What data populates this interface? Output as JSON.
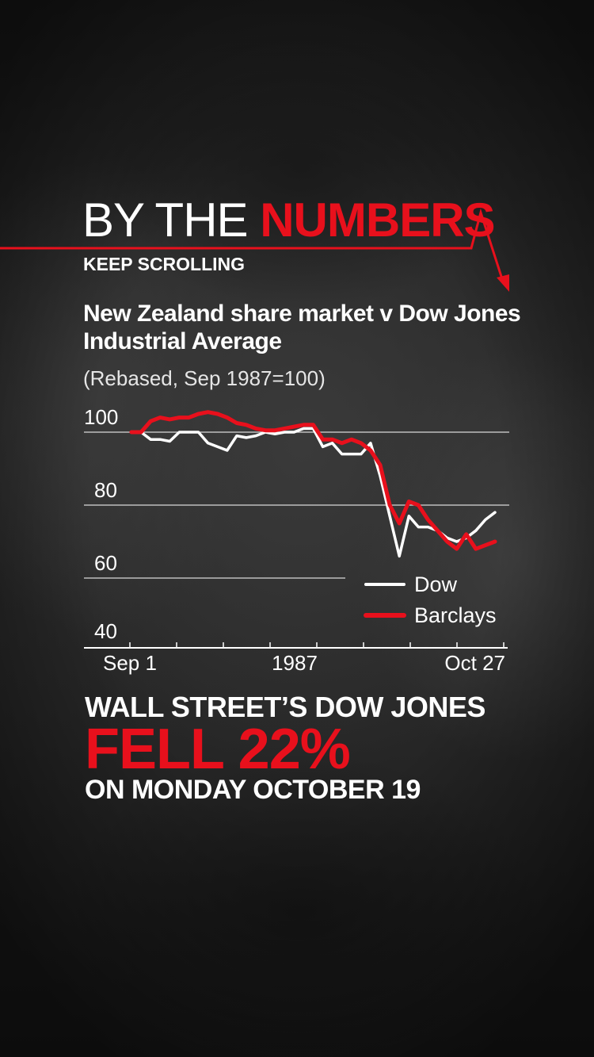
{
  "header": {
    "title_thin": "BY THE",
    "title_bold": "NUMBERS",
    "keep_scrolling": "KEEP SCROLLING"
  },
  "colors": {
    "accent_red": "#e8101c",
    "dow_line": "#ffffff",
    "barclays_line": "#e8101c"
  },
  "chart_data": {
    "type": "line",
    "title": "New Zealand share market v Dow Jones Industrial Average",
    "subtitle": "(Rebased, Sep 1987=100)",
    "x_ticks": [
      "Sep 1",
      "1987",
      "Oct 27"
    ],
    "y_ticks": [
      100,
      80,
      60,
      40
    ],
    "ylim": [
      40,
      105
    ],
    "xlim": [
      0,
      40
    ],
    "grid": true,
    "legend_placement": "bottom-right",
    "series": [
      {
        "name": "Dow",
        "x": [
          0,
          1,
          2,
          3,
          4,
          5,
          6,
          7,
          8,
          9,
          10,
          11,
          12,
          13,
          14,
          15,
          16,
          17,
          18,
          19,
          20,
          21,
          22,
          23,
          24,
          25,
          26,
          27,
          28,
          29,
          30,
          31,
          32,
          33,
          34,
          35,
          36,
          37,
          38
        ],
        "values": [
          100,
          100,
          98,
          98,
          97.5,
          100,
          100,
          100,
          97,
          96,
          95,
          99,
          98.5,
          99,
          100,
          99.5,
          100,
          100,
          101,
          101,
          96,
          97,
          94,
          94,
          94,
          97,
          88,
          77,
          66,
          77,
          74,
          74,
          73,
          71,
          70,
          71,
          73,
          76,
          78
        ]
      },
      {
        "name": "Barclays",
        "x": [
          0,
          1,
          2,
          3,
          4,
          5,
          6,
          7,
          8,
          9,
          10,
          11,
          12,
          13,
          14,
          15,
          16,
          17,
          18,
          19,
          20,
          21,
          22,
          23,
          24,
          25,
          26,
          27,
          28,
          29,
          30,
          31,
          32,
          33,
          34,
          35,
          36,
          37,
          38
        ],
        "values": [
          100,
          100,
          103,
          104,
          103.5,
          104,
          104,
          105,
          105.5,
          105,
          104,
          102.5,
          102,
          101,
          100.5,
          100.5,
          101,
          101.5,
          102,
          102,
          98,
          98,
          97,
          98,
          97,
          95,
          91,
          80,
          75,
          81,
          80,
          76,
          73,
          70,
          68,
          72,
          68,
          69,
          70
        ]
      }
    ]
  },
  "callout": {
    "line1": "WALL STREET’S DOW JONES",
    "line2": "FELL 22%",
    "line3": "ON MONDAY OCTOBER 19"
  }
}
